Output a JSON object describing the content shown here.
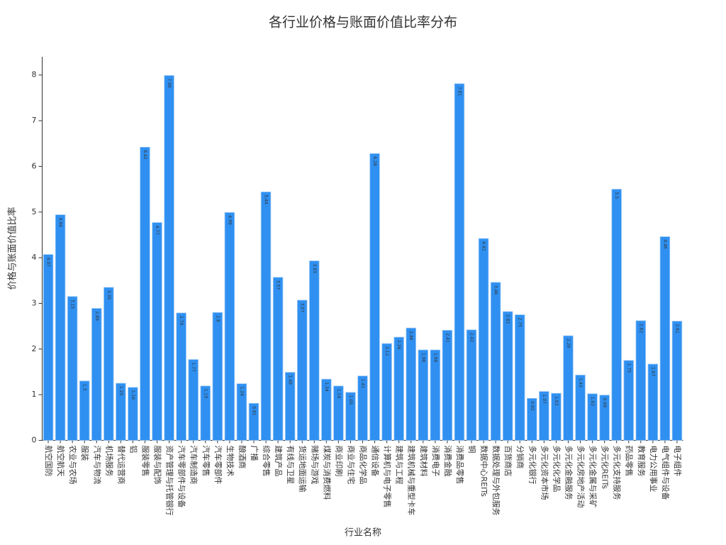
{
  "chart_data": {
    "type": "bar",
    "title": "各行业价格与账面价值比率分布",
    "x_label": "行业名称",
    "y_label": "价格与账面价值比率",
    "categories": [
      "航空国防",
      "航空航天",
      "农业与农场",
      "服装",
      "汽车与物流",
      "机场服务",
      "替代运营商",
      "铝",
      "服装零售",
      "服装与配饰",
      "资产管理与托管银行",
      "汽车零部件与设备",
      "汽车制造商",
      "汽车零售",
      "汽车零部件",
      "生物技术",
      "酿酒商",
      "广播",
      "综合零售",
      "建筑产品",
      "有线与卫星",
      "货运地面运输",
      "赌场与游戏",
      "煤炭与消费燃料",
      "商业印刷",
      "商业与住宅",
      "商品化学品",
      "通信设备",
      "计算机与电子零售",
      "建筑与工程",
      "建筑机械与重型卡车",
      "建筑材料",
      "消费电子",
      "消费金融",
      "消费品零售",
      "铜",
      "数据中心REITs",
      "数据处理与外包服务",
      "百货商店",
      "分销商",
      "多元化银行",
      "多元化资本市场",
      "多元化化学品",
      "多元化金融服务",
      "多元化房地产活动",
      "多元化金属与采矿",
      "多元化REITs",
      "多元化支持服务",
      "药品零售",
      "教育服务",
      "电力公用事业",
      "电气组件与设备",
      "电子组件"
    ],
    "values": [
      4.07,
      4.94,
      3.15,
      1.3,
      2.89,
      3.35,
      1.25,
      1.16,
      6.42,
      4.77,
      7.99,
      2.79,
      1.77,
      1.19,
      2.8,
      4.99,
      1.24,
      0.81,
      5.44,
      3.57,
      1.49,
      3.07,
      3.93,
      1.34,
      1.19,
      1.05,
      1.41,
      6.28,
      2.12,
      2.26,
      2.46,
      1.98,
      1.98,
      2.41,
      7.81,
      2.42,
      4.42,
      3.46,
      2.82,
      2.75,
      0.92,
      1.07,
      1.03,
      2.29,
      1.43,
      1.02,
      0.99,
      5.5,
      1.75,
      2.62,
      1.67,
      4.46,
      2.61
    ],
    "color": "#2f90f1",
    "ylim": [
      0,
      8.4
    ],
    "yticks": [
      0,
      1,
      2,
      3,
      4,
      5,
      6,
      7,
      8
    ],
    "grid": false
  }
}
